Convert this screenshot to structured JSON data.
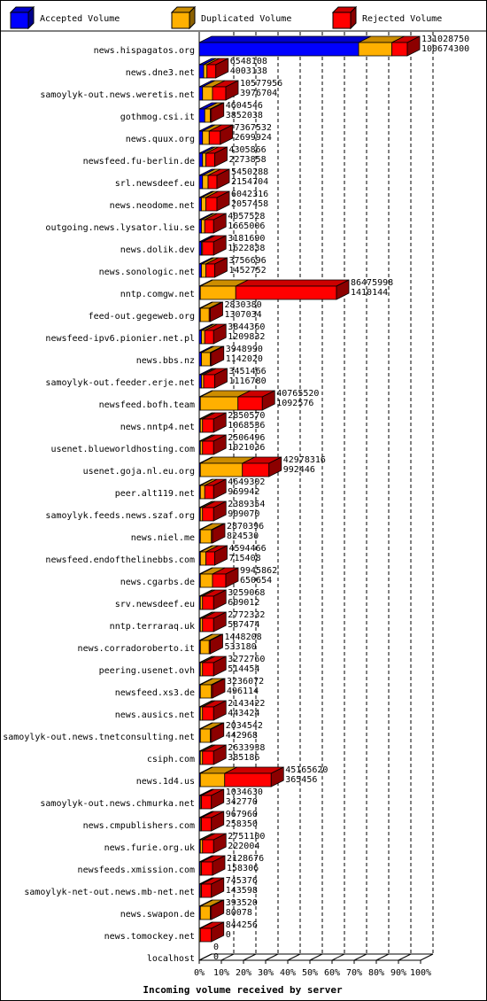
{
  "colors": {
    "accepted": "#0000ff",
    "duplicated": "#ffb000",
    "rejected": "#ff0000",
    "frame": "#000000",
    "background": "#ffffff"
  },
  "chart_data": {
    "type": "bar",
    "orientation": "horizontal",
    "stacked": true,
    "xlabel": "Incoming volume received by server",
    "xlim": [
      0,
      100
    ],
    "x_unit": "%",
    "x_ticks": [
      "0%",
      "10%",
      "20%",
      "30%",
      "40%",
      "50%",
      "60%",
      "70%",
      "80%",
      "90%",
      "100%"
    ],
    "grid": "vertical-dashed",
    "legend_position": "top",
    "legend": [
      {
        "key": "accepted",
        "label": "Accepted Volume"
      },
      {
        "key": "duplicated",
        "label": "Duplicated Volume"
      },
      {
        "key": "rejected",
        "label": "Rejected Volume"
      }
    ],
    "series_percent_note": "",
    "rows": [
      {
        "server": "news.hispagatos.org",
        "total": "131028750",
        "accepted": "100674300",
        "pct": [
          72,
          15,
          7
        ]
      },
      {
        "server": "news.dne3.net",
        "total": "6548108",
        "accepted": "4003138",
        "pct": [
          2.0,
          1.5,
          4.0
        ]
      },
      {
        "server": "samoylyk-out.news.weretis.net",
        "total": "10577956",
        "accepted": "3976704",
        "pct": [
          1.5,
          4.5,
          6.0
        ]
      },
      {
        "server": "gothmog.csi.it",
        "total": "4604546",
        "accepted": "3852038",
        "pct": [
          2.5,
          2.5,
          0.5
        ]
      },
      {
        "server": "news.quux.org",
        "total": "7367532",
        "accepted": "2699924",
        "pct": [
          1.5,
          3.0,
          5.0
        ]
      },
      {
        "server": "newsfeed.fu-berlin.de",
        "total": "4305866",
        "accepted": "2273858",
        "pct": [
          1.5,
          1.5,
          4.0
        ]
      },
      {
        "server": "srl.newsdeef.eu",
        "total": "5450288",
        "accepted": "2154704",
        "pct": [
          1.5,
          2.5,
          4.0
        ]
      },
      {
        "server": "news.neodome.net",
        "total": "6042316",
        "accepted": "2057458",
        "pct": [
          1.0,
          2.0,
          5.0
        ]
      },
      {
        "server": "outgoing.news.lysator.liu.se",
        "total": "4057528",
        "accepted": "1665006",
        "pct": [
          1.0,
          1.5,
          4.0
        ]
      },
      {
        "server": "news.dolik.dev",
        "total": "3181690",
        "accepted": "1622838",
        "pct": [
          1.0,
          0.5,
          5.0
        ]
      },
      {
        "server": "news.sonologic.net",
        "total": "3756696",
        "accepted": "1452752",
        "pct": [
          1.0,
          2.0,
          4.0
        ]
      },
      {
        "server": "nntp.comgw.net",
        "total": "86475998",
        "accepted": "1410144",
        "pct": [
          0.5,
          16.0,
          45.5
        ]
      },
      {
        "server": "feed-out.gegeweb.org",
        "total": "2830380",
        "accepted": "1307034",
        "pct": [
          0.5,
          4.0,
          0.5
        ]
      },
      {
        "server": "newsfeed-ipv6.pionier.net.pl",
        "total": "3844360",
        "accepted": "1209832",
        "pct": [
          1.0,
          1.5,
          4.0
        ]
      },
      {
        "server": "news.bbs.nz",
        "total": "3948990",
        "accepted": "1142020",
        "pct": [
          1.0,
          4.0,
          0.5
        ]
      },
      {
        "server": "samoylyk-out.feeder.erje.net",
        "total": "3451466",
        "accepted": "1116780",
        "pct": [
          1.0,
          1.0,
          5.0
        ]
      },
      {
        "server": "newsfeed.bofh.team",
        "total": "40765520",
        "accepted": "1092576",
        "pct": [
          0.5,
          17.0,
          11.0
        ]
      },
      {
        "server": "news.nntp4.net",
        "total": "2850570",
        "accepted": "1068536",
        "pct": [
          0.5,
          1.0,
          5.0
        ]
      },
      {
        "server": "usenet.blueworldhosting.com",
        "total": "2506496",
        "accepted": "1021036",
        "pct": [
          0.5,
          1.0,
          5.0
        ]
      },
      {
        "server": "usenet.goja.nl.eu.org",
        "total": "42978316",
        "accepted": "992446",
        "pct": [
          0.5,
          19.0,
          12.0
        ]
      },
      {
        "server": "peer.alt119.net",
        "total": "4649302",
        "accepted": "969942",
        "pct": [
          0.5,
          2.0,
          4.0
        ]
      },
      {
        "server": "samoylyk.feeds.news.szaf.org",
        "total": "2389354",
        "accepted": "909070",
        "pct": [
          0.5,
          1.0,
          5.0
        ]
      },
      {
        "server": "news.niel.me",
        "total": "2870396",
        "accepted": "824530",
        "pct": [
          0.5,
          5.0,
          0.5
        ]
      },
      {
        "server": "newsfeed.endofthelinebbs.com",
        "total": "4594466",
        "accepted": "715408",
        "pct": [
          0.5,
          2.5,
          4.0
        ]
      },
      {
        "server": "news.cgarbs.de",
        "total": "9945862",
        "accepted": "650654",
        "pct": [
          0.5,
          5.5,
          6.0
        ]
      },
      {
        "server": "srv.newsdeef.eu",
        "total": "3259068",
        "accepted": "609012",
        "pct": [
          0.5,
          1.0,
          5.0
        ]
      },
      {
        "server": "nntp.terraraq.uk",
        "total": "2772332",
        "accepted": "587474",
        "pct": [
          0.5,
          1.0,
          5.0
        ]
      },
      {
        "server": "news.corradoroberto.it",
        "total": "1448208",
        "accepted": "533180",
        "pct": [
          0.5,
          4.0,
          0.5
        ]
      },
      {
        "server": "peering.usenet.ovh",
        "total": "3272760",
        "accepted": "514454",
        "pct": [
          0.5,
          1.0,
          5.0
        ]
      },
      {
        "server": "newsfeed.xs3.de",
        "total": "3236072",
        "accepted": "496114",
        "pct": [
          0.5,
          5.0,
          0.5
        ]
      },
      {
        "server": "news.ausics.net",
        "total": "2143422",
        "accepted": "443424",
        "pct": [
          0.5,
          1.0,
          5.0
        ]
      },
      {
        "server": "samoylyk-out.news.tnetconsulting.net",
        "total": "2034542",
        "accepted": "442968",
        "pct": [
          0.5,
          4.5,
          0.5
        ]
      },
      {
        "server": "csiph.com",
        "total": "2633938",
        "accepted": "385186",
        "pct": [
          0.5,
          1.0,
          5.0
        ]
      },
      {
        "server": "news.1d4.us",
        "total": "45165620",
        "accepted": "365456",
        "pct": [
          0.5,
          11.0,
          21.0
        ]
      },
      {
        "server": "samoylyk-out.news.chmurka.net",
        "total": "1034630",
        "accepted": "342770",
        "pct": [
          0.5,
          0.5,
          4.5
        ]
      },
      {
        "server": "news.cmpublishers.com",
        "total": "967960",
        "accepted": "258350",
        "pct": [
          0.5,
          0.5,
          4.5
        ]
      },
      {
        "server": "news.furie.org.uk",
        "total": "2751100",
        "accepted": "222004",
        "pct": [
          0.5,
          1.0,
          5.0
        ]
      },
      {
        "server": "newsfeeds.xmission.com",
        "total": "2128676",
        "accepted": "158306",
        "pct": [
          0.5,
          0.5,
          5.0
        ]
      },
      {
        "server": "samoylyk-net-out.news.mb-net.net",
        "total": "745376",
        "accepted": "143598",
        "pct": [
          0.5,
          0.5,
          4.5
        ]
      },
      {
        "server": "news.swapon.de",
        "total": "393520",
        "accepted": "80078",
        "pct": [
          0.5,
          4.5,
          0.5
        ]
      },
      {
        "server": "news.tomockey.net",
        "total": "844256",
        "accepted": "0",
        "pct": [
          0,
          0.5,
          5.0
        ]
      },
      {
        "server": "localhost",
        "total": "0",
        "accepted": "0",
        "pct": [
          0,
          0,
          0
        ]
      }
    ]
  }
}
